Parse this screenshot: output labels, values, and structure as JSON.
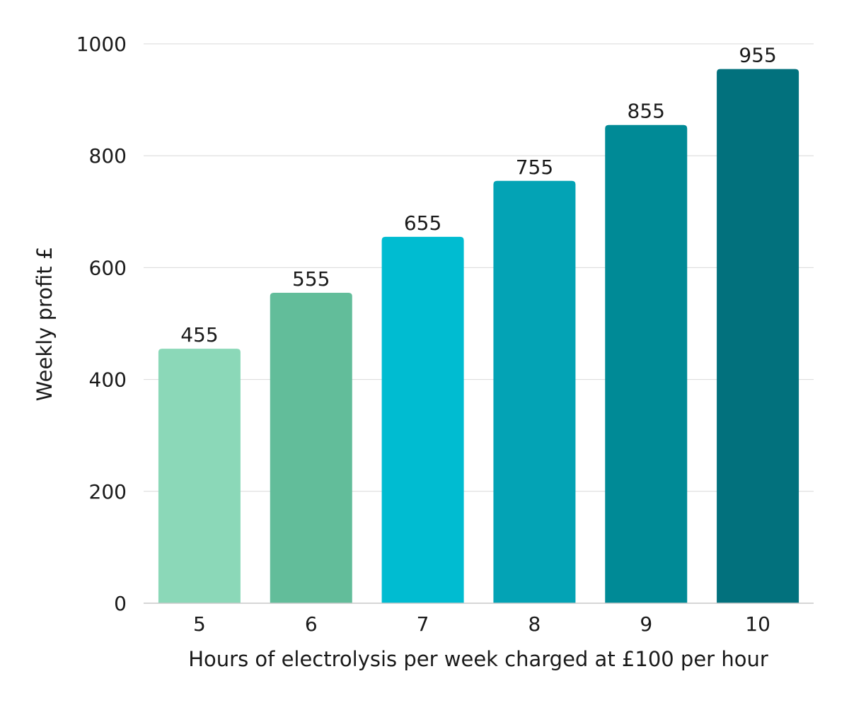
{
  "chart_data": {
    "type": "bar",
    "title": "",
    "xlabel": "Hours of electrolysis per week charged at £100 per hour",
    "ylabel": "Weekly profit £",
    "categories": [
      "5",
      "6",
      "7",
      "8",
      "9",
      "10"
    ],
    "values": [
      455,
      555,
      655,
      755,
      855,
      955
    ],
    "data_labels": [
      "455",
      "555",
      "655",
      "755",
      "855",
      "955"
    ],
    "bar_colors": [
      "#8BD8B8",
      "#62BD9A",
      "#00BCD1",
      "#03A3B5",
      "#008A96",
      "#02717D"
    ],
    "ylim": [
      0,
      1000
    ],
    "yticks": [
      0,
      200,
      400,
      600,
      800,
      1000
    ],
    "ytick_labels": [
      "0",
      "200",
      "400",
      "600",
      "800",
      "1000"
    ],
    "grid": true,
    "grid_color": "#d9d9d9",
    "axis_color": "#c8c8c8",
    "legend": "none"
  }
}
